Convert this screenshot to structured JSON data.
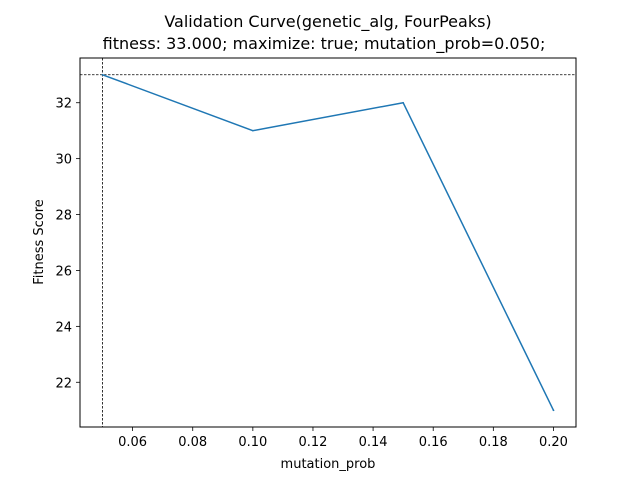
{
  "chart_data": {
    "type": "line",
    "title": "Validation Curve(genetic_alg, FourPeaks)",
    "subtitle": "fitness: 33.000; maximize: true; mutation_prob=0.050;",
    "xlabel": "mutation_prob",
    "ylabel": "Fitness Score",
    "x": [
      0.05,
      0.1,
      0.15,
      0.2
    ],
    "series": [
      {
        "values": [
          33,
          31,
          32,
          21
        ],
        "color": "#1f77b4"
      }
    ],
    "xlim": [
      0.0425,
      0.2075
    ],
    "ylim": [
      20.4,
      33.6
    ],
    "xticks": [
      0.06,
      0.08,
      0.1,
      0.12,
      0.14,
      0.16,
      0.18,
      0.2
    ],
    "xtick_labels": [
      "0.06",
      "0.08",
      "0.10",
      "0.12",
      "0.14",
      "0.16",
      "0.18",
      "0.20"
    ],
    "yticks": [
      22,
      24,
      26,
      28,
      30,
      32
    ],
    "ytick_labels": [
      "22",
      "24",
      "26",
      "28",
      "30",
      "32"
    ],
    "reference_lines": {
      "x": 0.05,
      "y": 33,
      "style": "dashed",
      "color": "#000000"
    },
    "grid": false,
    "legend": "none"
  }
}
